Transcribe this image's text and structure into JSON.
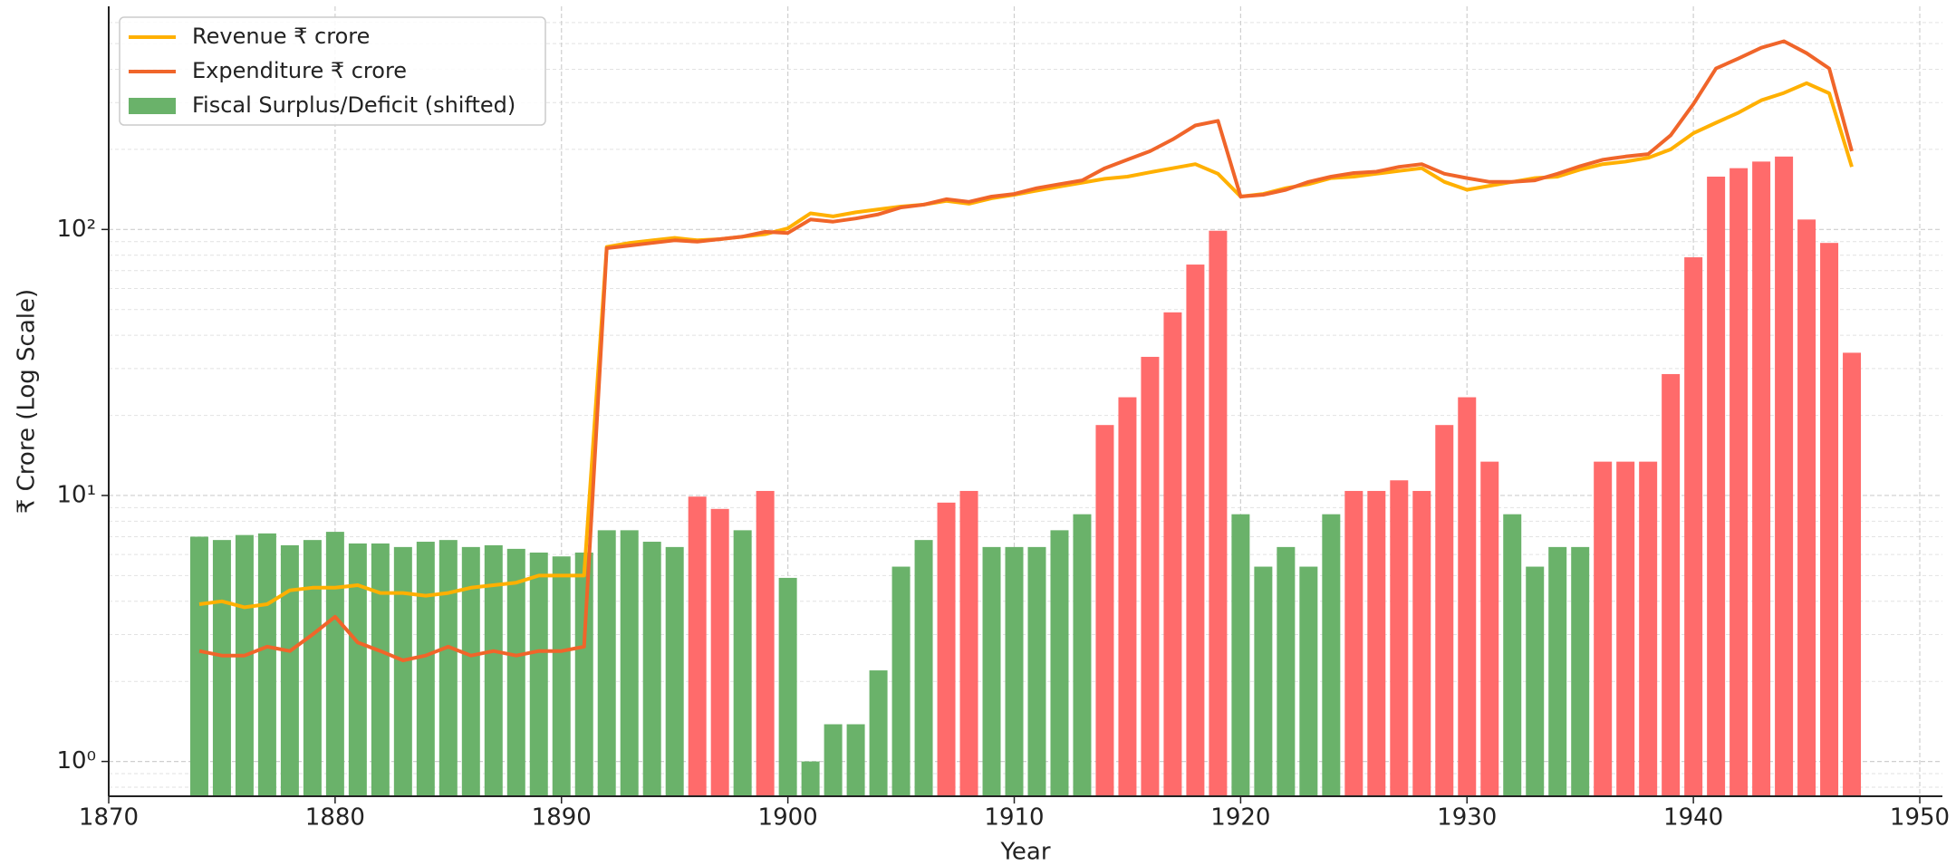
{
  "chart_data": {
    "type": "combo",
    "xlabel": "Year",
    "ylabel": "₹ Crore (Log Scale)",
    "x": [
      1874,
      1875,
      1876,
      1877,
      1878,
      1879,
      1880,
      1881,
      1882,
      1883,
      1884,
      1885,
      1886,
      1887,
      1888,
      1889,
      1890,
      1891,
      1892,
      1893,
      1894,
      1895,
      1896,
      1897,
      1898,
      1899,
      1900,
      1901,
      1902,
      1903,
      1904,
      1905,
      1906,
      1907,
      1908,
      1909,
      1910,
      1911,
      1912,
      1913,
      1914,
      1915,
      1916,
      1917,
      1918,
      1919,
      1920,
      1921,
      1922,
      1923,
      1924,
      1925,
      1926,
      1927,
      1928,
      1929,
      1930,
      1931,
      1932,
      1933,
      1934,
      1935,
      1936,
      1937,
      1938,
      1939,
      1940,
      1941,
      1942,
      1943,
      1944,
      1945,
      1946,
      1947
    ],
    "series": [
      {
        "name": "Revenue ₹ crore",
        "type": "line",
        "color": "#ffb000",
        "values": [
          3.9,
          4.0,
          3.8,
          3.9,
          4.4,
          4.5,
          4.5,
          4.6,
          4.3,
          4.3,
          4.2,
          4.3,
          4.5,
          4.6,
          4.7,
          5.0,
          5.0,
          5.0,
          86,
          89,
          91,
          93,
          91,
          92,
          94,
          96,
          101,
          115,
          112,
          116,
          119,
          122,
          124,
          128,
          125,
          131,
          135,
          140,
          145,
          150,
          155,
          158,
          164,
          170,
          176,
          162,
          133,
          136,
          143,
          148,
          156,
          158,
          162,
          166,
          170,
          151,
          141,
          146,
          151,
          156,
          158,
          168,
          176,
          180,
          186,
          200,
          230,
          252,
          275,
          306,
          326,
          355,
          325,
          172
        ]
      },
      {
        "name": "Expenditure ₹ crore",
        "type": "line",
        "color": "#f0652a",
        "values": [
          2.6,
          2.5,
          2.5,
          2.7,
          2.6,
          3.0,
          3.5,
          2.8,
          2.6,
          2.4,
          2.5,
          2.7,
          2.5,
          2.6,
          2.5,
          2.6,
          2.6,
          2.7,
          85,
          87,
          89,
          91,
          90,
          92,
          94,
          98,
          97,
          109,
          107,
          110,
          114,
          121,
          124,
          130,
          127,
          133,
          136,
          143,
          148,
          153,
          170,
          183,
          197,
          218,
          246,
          256,
          133,
          135,
          141,
          151,
          158,
          163,
          165,
          172,
          176,
          162,
          156,
          151,
          151,
          153,
          162,
          173,
          183,
          188,
          192,
          226,
          296,
          403,
          440,
          482,
          510,
          460,
          403,
          197
        ]
      },
      {
        "name": "Fiscal Surplus/Deficit (shifted)",
        "type": "bar",
        "color": "#6ab26a",
        "values": [
          7.0,
          6.8,
          7.1,
          7.2,
          6.5,
          6.8,
          7.3,
          6.6,
          6.6,
          6.4,
          6.7,
          6.8,
          6.4,
          6.5,
          6.3,
          6.1,
          5.9,
          6.1,
          7.4,
          7.4,
          6.7,
          6.4,
          9.9,
          8.9,
          7.4,
          10.4,
          4.9,
          1.0,
          1.38,
          1.38,
          2.2,
          5.4,
          6.8,
          9.4,
          10.4,
          6.4,
          6.4,
          6.4,
          7.4,
          8.5,
          18.4,
          23.4,
          33.2,
          48.8,
          73.8,
          98.9,
          8.5,
          5.4,
          6.4,
          5.4,
          8.5,
          10.4,
          10.4,
          11.4,
          10.4,
          18.4,
          23.4,
          13.4,
          8.5,
          5.4,
          6.4,
          6.4,
          13.4,
          13.4,
          13.4,
          28.6,
          78.6,
          158,
          170,
          180,
          188,
          109,
          89,
          34.4
        ],
        "colors": [
          "#6ab26a",
          "#6ab26a",
          "#6ab26a",
          "#6ab26a",
          "#6ab26a",
          "#6ab26a",
          "#6ab26a",
          "#6ab26a",
          "#6ab26a",
          "#6ab26a",
          "#6ab26a",
          "#6ab26a",
          "#6ab26a",
          "#6ab26a",
          "#6ab26a",
          "#6ab26a",
          "#6ab26a",
          "#6ab26a",
          "#6ab26a",
          "#6ab26a",
          "#6ab26a",
          "#6ab26a",
          "#ff6b6b",
          "#ff6b6b",
          "#6ab26a",
          "#ff6b6b",
          "#6ab26a",
          "#6ab26a",
          "#6ab26a",
          "#6ab26a",
          "#6ab26a",
          "#6ab26a",
          "#6ab26a",
          "#ff6b6b",
          "#ff6b6b",
          "#6ab26a",
          "#6ab26a",
          "#6ab26a",
          "#6ab26a",
          "#6ab26a",
          "#ff6b6b",
          "#ff6b6b",
          "#ff6b6b",
          "#ff6b6b",
          "#ff6b6b",
          "#ff6b6b",
          "#6ab26a",
          "#6ab26a",
          "#6ab26a",
          "#6ab26a",
          "#6ab26a",
          "#ff6b6b",
          "#ff6b6b",
          "#ff6b6b",
          "#ff6b6b",
          "#ff6b6b",
          "#ff6b6b",
          "#ff6b6b",
          "#6ab26a",
          "#6ab26a",
          "#6ab26a",
          "#6ab26a",
          "#ff6b6b",
          "#ff6b6b",
          "#ff6b6b",
          "#ff6b6b",
          "#ff6b6b",
          "#ff6b6b",
          "#ff6b6b",
          "#ff6b6b",
          "#ff6b6b",
          "#ff6b6b",
          "#ff6b6b",
          "#ff6b6b"
        ]
      }
    ],
    "xlim": [
      1870,
      1951
    ],
    "xticks": [
      1870,
      1880,
      1890,
      1900,
      1910,
      1920,
      1930,
      1940,
      1950
    ],
    "ylim": [
      0.74,
      690
    ],
    "ylog": true,
    "yticks": [
      {
        "value": 1,
        "label": "10⁰"
      },
      {
        "value": 10,
        "label": "10¹"
      },
      {
        "value": 100,
        "label": "10²"
      }
    ],
    "yminorticks": [
      0.8,
      0.9,
      2,
      3,
      4,
      5,
      6,
      7,
      8,
      9,
      20,
      30,
      40,
      50,
      60,
      70,
      80,
      90,
      200,
      300,
      400,
      500,
      600
    ],
    "grid": true,
    "legend": "upper left"
  }
}
